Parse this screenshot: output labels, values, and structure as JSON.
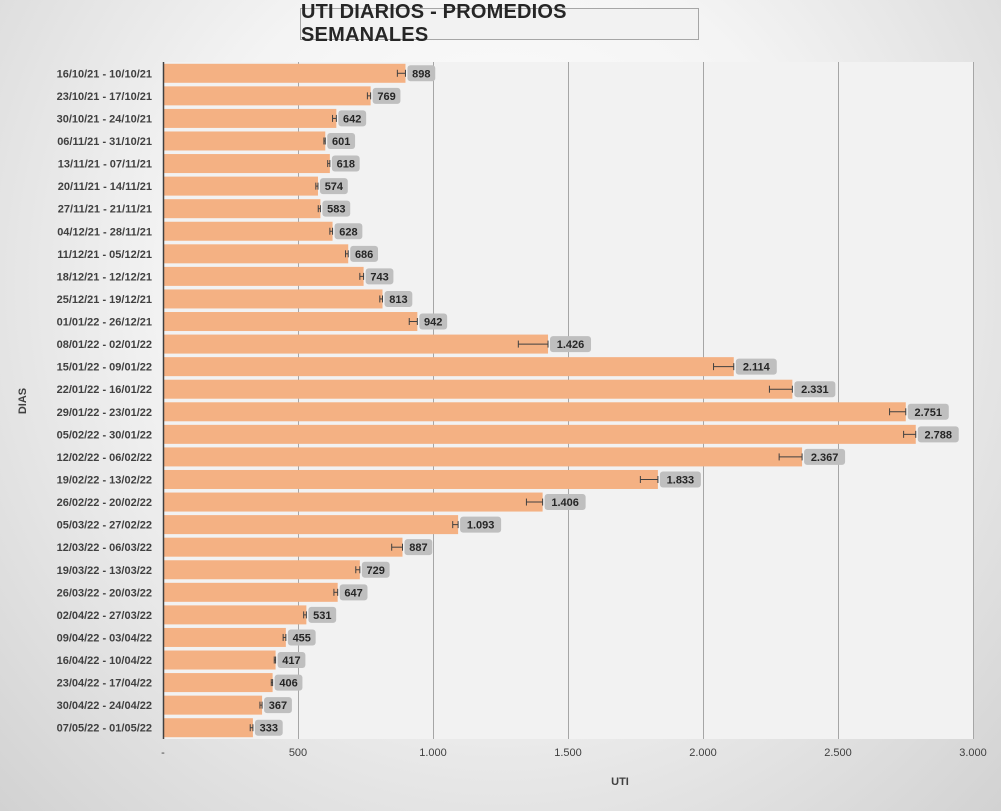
{
  "chart_data": {
    "type": "bar",
    "orientation": "horizontal",
    "title": "UTI DIARIOS - PROMEDIOS SEMANALES",
    "xlabel": "UTI",
    "ylabel": "DIAS",
    "xlim": [
      0,
      3000
    ],
    "x_ticks": [
      "-",
      "500",
      "1.000",
      "1.500",
      "2.000",
      "2.500",
      "3.000"
    ],
    "x_tick_values": [
      0,
      500,
      1000,
      1500,
      2000,
      2500,
      3000
    ],
    "grid": "vertical",
    "bar_color": "#f4b183",
    "categories": [
      "16/10/21 - 10/10/21",
      "23/10/21 - 17/10/21",
      "30/10/21 - 24/10/21",
      "06/11/21 - 31/10/21",
      "13/11/21 - 07/11/21",
      "20/11/21 - 14/11/21",
      "27/11/21 - 21/11/21",
      "04/12/21 - 28/11/21",
      "11/12/21 - 05/12/21",
      "18/12/21 - 12/12/21",
      "25/12/21 - 19/12/21",
      "01/01/22 - 26/12/21",
      "08/01/22 - 02/01/22",
      "15/01/22 - 09/01/22",
      "22/01/22 - 16/01/22",
      "29/01/22 - 23/01/22",
      "05/02/22 - 30/01/22",
      "12/02/22 - 06/02/22",
      "19/02/22 - 13/02/22",
      "26/02/22 - 20/02/22",
      "05/03/22 - 27/02/22",
      "12/03/22 - 06/03/22",
      "19/03/22 - 13/03/22",
      "26/03/22 - 20/03/22",
      "02/04/22 - 27/03/22",
      "09/04/22 - 03/04/22",
      "16/04/22 - 10/04/22",
      "23/04/22 - 17/04/22",
      "30/04/22 - 24/04/22",
      "07/05/22 - 01/05/22"
    ],
    "values": [
      898,
      769,
      642,
      601,
      618,
      574,
      583,
      628,
      686,
      743,
      813,
      942,
      1426,
      2114,
      2331,
      2751,
      2788,
      2367,
      1833,
      1406,
      1093,
      887,
      729,
      647,
      531,
      455,
      417,
      406,
      367,
      333
    ],
    "data_labels": [
      "898",
      "769",
      "642",
      "601",
      "618",
      "574",
      "583",
      "628",
      "686",
      "743",
      "813",
      "942",
      "1.426",
      "2.114",
      "2.331",
      "2.751",
      "2.788",
      "2.367",
      "1.833",
      "1.406",
      "1.093",
      "887",
      "729",
      "647",
      "531",
      "455",
      "417",
      "406",
      "367",
      "333"
    ],
    "error_bars": [
      30,
      12,
      14,
      5,
      8,
      8,
      8,
      10,
      10,
      14,
      10,
      30,
      110,
      75,
      85,
      60,
      45,
      85,
      65,
      60,
      20,
      40,
      15,
      14,
      10,
      10,
      5,
      5,
      8,
      10
    ]
  }
}
